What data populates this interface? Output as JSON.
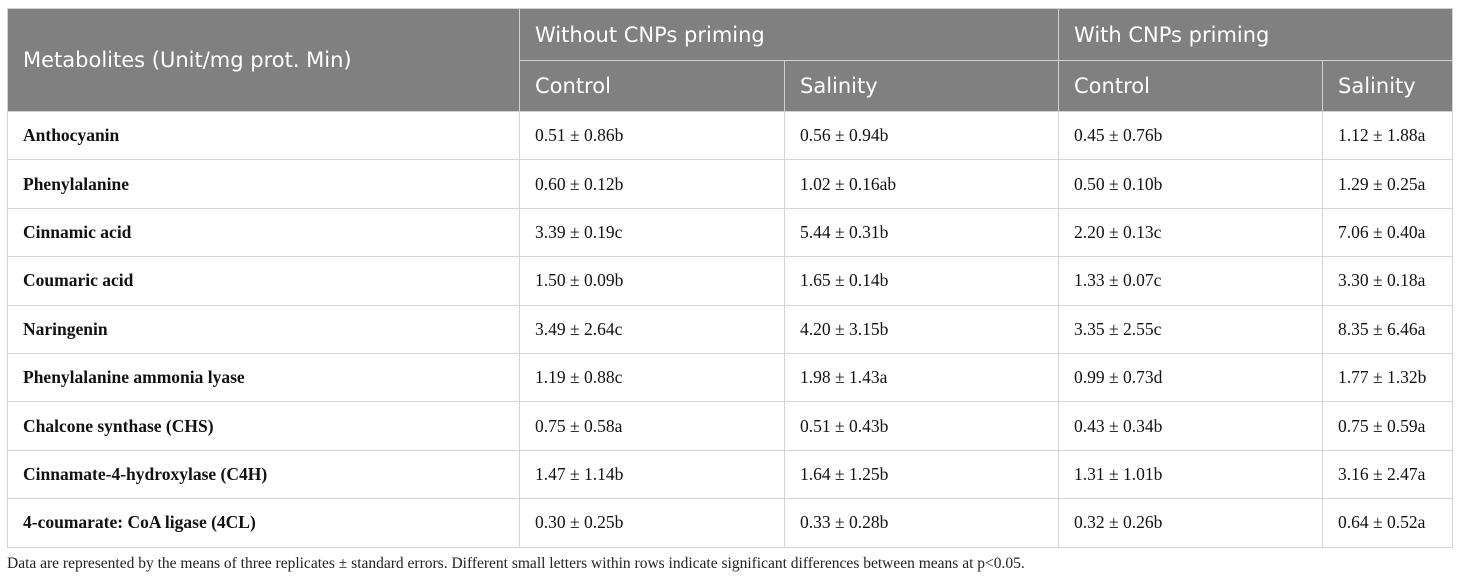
{
  "header": {
    "title": "Metabolites (Unit/mg prot. Min)",
    "groups": [
      "Without CNPs priming",
      "With CNPs priming"
    ],
    "subcolumns": [
      "Control",
      "Salinity",
      "Control",
      "Salinity"
    ]
  },
  "table": {
    "rows": [
      [
        "Anthocyanin",
        "0.51 ± 0.86b",
        "0.56 ± 0.94b",
        "0.45 ± 0.76b",
        "1.12 ± 1.88a"
      ],
      [
        "Phenylalanine",
        "0.60 ± 0.12b",
        "1.02 ± 0.16ab",
        "0.50 ± 0.10b",
        "1.29 ± 0.25a"
      ],
      [
        "Cinnamic acid",
        "3.39 ± 0.19c",
        "5.44 ± 0.31b",
        "2.20 ± 0.13c",
        "7.06 ± 0.40a"
      ],
      [
        "Coumaric acid",
        "1.50 ± 0.09b",
        "1.65 ± 0.14b",
        "1.33 ± 0.07c",
        "3.30 ± 0.18a"
      ],
      [
        "Naringenin",
        "3.49 ± 2.64c",
        "4.20 ± 3.15b",
        "3.35 ± 2.55c",
        "8.35 ± 6.46a"
      ],
      [
        "Phenylalanine ammonia lyase",
        "1.19 ± 0.88c",
        "1.98 ± 1.43a",
        "0.99 ± 0.73d",
        "1.77 ± 1.32b"
      ],
      [
        "Chalcone synthase (CHS)",
        "0.75 ± 0.58a",
        "0.51 ± 0.43b",
        "0.43 ± 0.34b",
        "0.75 ± 0.59a"
      ],
      [
        "Cinnamate-4-hydroxylase (C4H)",
        "1.47 ± 1.14b",
        "1.64 ± 1.25b",
        "1.31 ± 1.01b",
        "3.16 ± 2.47a"
      ],
      [
        "4-coumarate: CoA ligase (4CL)",
        "0.30 ± 0.25b",
        "0.33 ± 0.28b",
        "0.32 ± 0.26b",
        "0.64 ± 0.52a"
      ]
    ]
  },
  "footnote": "Data are represented by the means of three replicates ± standard errors. Different small letters within rows indicate significant differences between means at p<0.05."
}
